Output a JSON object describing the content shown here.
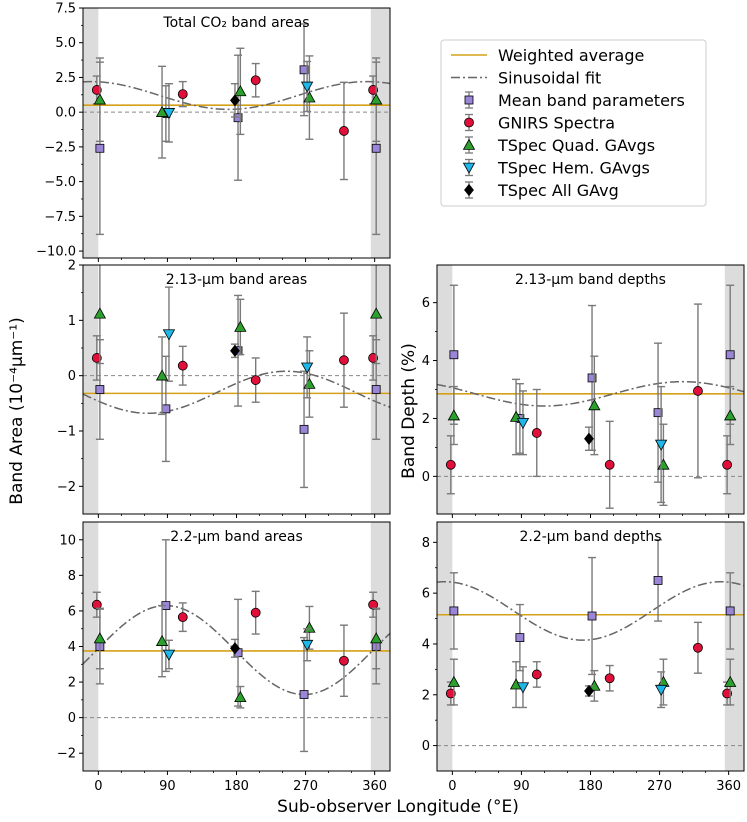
{
  "figure": {
    "shared_ylabel": "Band Area (10⁻⁴μm⁻¹)",
    "shared_xlabel": "Sub-observer Longitude (°E)",
    "colors": {
      "weighted": "#d4a017",
      "sin": "#666666",
      "mean": "#9a85d6",
      "gnirs": "#e0103a",
      "quad": "#2ca02c",
      "hem": "#1fb7e8",
      "all": "#000000",
      "shade": "#dcdcdc",
      "err": "#7a7a7a"
    }
  },
  "legend": {
    "items": [
      {
        "key": "weighted",
        "label": "Weighted average",
        "symbol": "line"
      },
      {
        "key": "sin",
        "label": "Sinusoidal fit",
        "symbol": "dashdot"
      },
      {
        "key": "mean",
        "label": "Mean band parameters",
        "symbol": "square"
      },
      {
        "key": "gnirs",
        "label": "GNIRS Spectra",
        "symbol": "circle"
      },
      {
        "key": "quad",
        "label": "TSpec Quad. GAvgs",
        "symbol": "triangle-up"
      },
      {
        "key": "hem",
        "label": "TSpec Hem. GAvgs",
        "symbol": "triangle-down"
      },
      {
        "key": "all",
        "label": "TSpec All GAvg",
        "symbol": "diamond"
      }
    ]
  },
  "chart_data": [
    {
      "id": "co2-area",
      "type": "scatter",
      "title": "Total CO₂ band areas",
      "xlim": [
        -20,
        380
      ],
      "ylim": [
        -10.5,
        7.5
      ],
      "yticks": [
        7.5,
        5.0,
        2.5,
        0.0,
        -2.5,
        -5.0,
        -7.5,
        -10.0
      ],
      "ytick_labels": [
        "7.5",
        "5.0",
        "2.5",
        "0.0",
        "−2.5",
        "−5.0",
        "−7.5",
        "−10.0"
      ],
      "xticks": [
        0,
        90,
        180,
        270,
        360
      ],
      "xtick_labels": [],
      "shade": [
        [
          -20,
          0
        ],
        [
          355,
          380
        ]
      ],
      "weighted_avg": 0.5,
      "sin": {
        "A": 1.0,
        "phi": -10,
        "C": 1.2
      },
      "series": [
        {
          "key": "mean",
          "points": [
            [
              2,
              -2.6,
              6.2
            ],
            [
              88,
              -0.1,
              2.0
            ],
            [
              182,
              -0.4,
              4.5
            ],
            [
              268,
              3.05,
              3.3
            ],
            [
              362,
              -2.6,
              6.2
            ]
          ]
        },
        {
          "key": "gnirs",
          "points": [
            [
              -2,
              1.6,
              1.0
            ],
            [
              110,
              1.3,
              0.9
            ],
            [
              205,
              2.3,
              1.2
            ],
            [
              320,
              -1.35,
              3.5
            ],
            [
              358,
              1.6,
              1.0
            ]
          ]
        },
        {
          "key": "quad",
          "points": [
            [
              2,
              0.9,
              3.0
            ],
            [
              83,
              0.0,
              3.3
            ],
            [
              185,
              1.5,
              3.1
            ],
            [
              275,
              1.05,
              3.0
            ],
            [
              362,
              0.9,
              3.0
            ]
          ]
        },
        {
          "key": "hem",
          "points": [
            [
              92,
              -0.05,
              2.1
            ],
            [
              272,
              1.85,
              1.8
            ]
          ]
        },
        {
          "key": "all",
          "points": [
            [
              178,
              0.85,
              1.2
            ]
          ]
        }
      ]
    },
    {
      "id": "h213-area",
      "type": "scatter",
      "title": "2.13-μm band areas",
      "xlim": [
        -20,
        380
      ],
      "ylim": [
        -2.5,
        2.0
      ],
      "yticks": [
        2,
        1,
        0,
        -1,
        -2
      ],
      "ytick_labels": [
        "2",
        "1",
        "0",
        "−1",
        "−2"
      ],
      "xticks": [
        0,
        90,
        180,
        270,
        360
      ],
      "xtick_labels": [],
      "shade": [
        [
          -20,
          0
        ],
        [
          355,
          380
        ]
      ],
      "weighted_avg": -0.32,
      "sin": {
        "A": 0.38,
        "phi": -115,
        "C": -0.3
      },
      "series": [
        {
          "key": "mean",
          "points": [
            [
              2,
              -0.25,
              0.9
            ],
            [
              88,
              -0.6,
              0.95
            ],
            [
              182,
              0.45,
              1.0
            ],
            [
              268,
              -0.97,
              1.05
            ],
            [
              362,
              -0.25,
              0.9
            ]
          ]
        },
        {
          "key": "gnirs",
          "points": [
            [
              -2,
              0.32,
              0.4
            ],
            [
              110,
              0.18,
              0.35
            ],
            [
              205,
              -0.08,
              0.4
            ],
            [
              320,
              0.28,
              0.85
            ],
            [
              358,
              0.32,
              0.4
            ]
          ]
        },
        {
          "key": "quad",
          "points": [
            [
              2,
              1.12,
              0.9
            ],
            [
              83,
              0.0,
              0.7
            ],
            [
              185,
              0.88,
              0.5
            ],
            [
              275,
              -0.15,
              0.6
            ],
            [
              362,
              1.12,
              0.9
            ]
          ]
        },
        {
          "key": "hem",
          "points": [
            [
              92,
              0.75,
              0.85
            ],
            [
              272,
              0.15,
              0.55
            ]
          ]
        },
        {
          "key": "all",
          "points": [
            [
              178,
              0.45,
              0.12
            ]
          ]
        }
      ]
    },
    {
      "id": "h213-depth",
      "type": "scatter",
      "title": "2.13-μm band depths",
      "xlim": [
        -20,
        380
      ],
      "ylim": [
        -1.3,
        7.3
      ],
      "yticks": [
        6,
        4,
        2,
        0
      ],
      "ytick_labels": [
        "6",
        "4",
        "2",
        "0"
      ],
      "xticks": [
        0,
        90,
        180,
        270,
        360
      ],
      "xtick_labels": [],
      "shade": [
        [
          -20,
          0
        ],
        [
          355,
          380
        ]
      ],
      "weighted_avg": 2.85,
      "sin": {
        "A": 0.42,
        "phi": -60,
        "C": 2.85
      },
      "series": [
        {
          "key": "mean",
          "points": [
            [
              2,
              4.2,
              2.4
            ],
            [
              88,
              2.0,
              1.2
            ],
            [
              182,
              3.4,
              2.5
            ],
            [
              268,
              2.2,
              2.4
            ],
            [
              362,
              4.2,
              2.4
            ]
          ]
        },
        {
          "key": "gnirs",
          "points": [
            [
              -2,
              0.4,
              1.0
            ],
            [
              110,
              1.5,
              1.5
            ],
            [
              205,
              0.4,
              1.5
            ],
            [
              320,
              2.95,
              3.0
            ],
            [
              358,
              0.4,
              1.0
            ]
          ]
        },
        {
          "key": "quad",
          "points": [
            [
              2,
              2.1,
              1.0
            ],
            [
              83,
              2.05,
              1.3
            ],
            [
              185,
              2.45,
              1.7
            ],
            [
              275,
              0.4,
              1.4
            ],
            [
              362,
              2.1,
              1.0
            ]
          ]
        },
        {
          "key": "hem",
          "points": [
            [
              92,
              1.85,
              1.1
            ],
            [
              272,
              1.1,
              2.0
            ]
          ]
        },
        {
          "key": "all",
          "points": [
            [
              178,
              1.3,
              0.4
            ]
          ]
        }
      ]
    },
    {
      "id": "h22-area",
      "type": "scatter",
      "title": "2.2-μm band areas",
      "xlim": [
        -20,
        380
      ],
      "ylim": [
        -3.0,
        11.0
      ],
      "yticks": [
        10,
        8,
        6,
        4,
        2,
        0,
        -2
      ],
      "ytick_labels": [
        "10",
        "8",
        "6",
        "4",
        "2",
        "0",
        "−2"
      ],
      "xticks": [
        0,
        90,
        180,
        270,
        360
      ],
      "xtick_labels": [
        "0",
        "90",
        "180",
        "270",
        "360"
      ],
      "shade": [
        [
          -20,
          0
        ],
        [
          355,
          380
        ]
      ],
      "weighted_avg": 3.75,
      "sin": {
        "A": 2.5,
        "phi": 88,
        "C": 3.8
      },
      "series": [
        {
          "key": "mean",
          "points": [
            [
              2,
              4.0,
              2.1
            ],
            [
              88,
              6.3,
              3.7
            ],
            [
              182,
              3.65,
              3.0
            ],
            [
              268,
              1.3,
              3.2
            ],
            [
              362,
              4.0,
              2.1
            ]
          ]
        },
        {
          "key": "gnirs",
          "points": [
            [
              -2,
              6.35,
              0.7
            ],
            [
              110,
              5.65,
              0.8
            ],
            [
              205,
              5.9,
              1.2
            ],
            [
              320,
              3.2,
              2.0
            ],
            [
              358,
              6.35,
              0.7
            ]
          ]
        },
        {
          "key": "quad",
          "points": [
            [
              2,
              4.45,
              1.7
            ],
            [
              83,
              4.3,
              2.0
            ],
            [
              185,
              1.15,
              0.6
            ],
            [
              275,
              5.05,
              1.2
            ],
            [
              362,
              4.45,
              1.7
            ]
          ]
        },
        {
          "key": "hem",
          "points": [
            [
              92,
              3.55,
              0.8
            ],
            [
              272,
              4.1,
              0.9
            ]
          ]
        },
        {
          "key": "all",
          "points": [
            [
              178,
              3.9,
              0.5
            ]
          ]
        }
      ]
    },
    {
      "id": "h22-depth",
      "type": "scatter",
      "title": "2.2-μm band depths",
      "ylabel": "Band Depth (%)",
      "xlim": [
        -20,
        380
      ],
      "ylim": [
        -1.0,
        8.8
      ],
      "yticks": [
        8,
        6,
        4,
        2,
        0
      ],
      "ytick_labels": [
        "8",
        "6",
        "4",
        "2",
        "0"
      ],
      "xticks": [
        0,
        90,
        180,
        270,
        360
      ],
      "xtick_labels": [
        "0",
        "90",
        "180",
        "270",
        "360"
      ],
      "shade": [
        [
          -20,
          0
        ],
        [
          355,
          380
        ]
      ],
      "weighted_avg": 5.15,
      "sin": {
        "A": 1.15,
        "phi": -10,
        "C": 5.3
      },
      "series": [
        {
          "key": "mean",
          "points": [
            [
              2,
              5.3,
              1.5
            ],
            [
              88,
              4.25,
              1.3
            ],
            [
              182,
              5.1,
              2.3
            ],
            [
              268,
              6.5,
              1.6
            ],
            [
              362,
              5.3,
              1.5
            ]
          ]
        },
        {
          "key": "gnirs",
          "points": [
            [
              -2,
              2.05,
              0.45
            ],
            [
              110,
              2.8,
              0.5
            ],
            [
              205,
              2.65,
              0.5
            ],
            [
              320,
              3.85,
              1.0
            ],
            [
              358,
              2.05,
              0.45
            ]
          ]
        },
        {
          "key": "quad",
          "points": [
            [
              2,
              2.5,
              0.9
            ],
            [
              83,
              2.4,
              0.9
            ],
            [
              185,
              2.35,
              0.6
            ],
            [
              275,
              2.5,
              0.9
            ],
            [
              362,
              2.5,
              0.9
            ]
          ]
        },
        {
          "key": "hem",
          "points": [
            [
              92,
              2.3,
              0.8
            ],
            [
              272,
              2.2,
              0.7
            ]
          ]
        },
        {
          "key": "all",
          "points": [
            [
              178,
              2.15,
              0.2
            ]
          ]
        }
      ]
    }
  ]
}
